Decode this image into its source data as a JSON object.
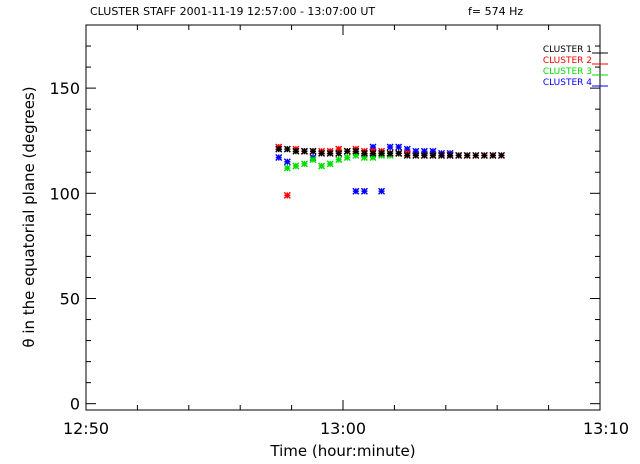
{
  "chart_data": {
    "type": "scatter",
    "title": "CLUSTER STAFF 2001-11-19 12:57:00 - 13:07:00 UT",
    "subtitle": "f=   574 Hz",
    "xlabel": "Time (hour:minute)",
    "ylabel": "θ in the equatorial plane (degrees)",
    "xlim": [
      "12:50",
      "13:10"
    ],
    "ylim": [
      -3,
      180
    ],
    "x_ticks": [
      "12:50",
      "13:00",
      "13:10"
    ],
    "y_ticks": [
      0,
      50,
      100,
      150
    ],
    "marker": "asterisk",
    "legend_position": "top-right",
    "series": [
      {
        "name": "CLUSTER 1",
        "color": "#000000",
        "x": [
          "12:57:30",
          "12:57:50",
          "12:58:10",
          "12:58:30",
          "12:58:50",
          "12:59:10",
          "12:59:30",
          "12:59:50",
          "13:00:10",
          "13:00:30",
          "13:00:50",
          "13:01:10",
          "13:01:30",
          "13:01:50",
          "13:02:10",
          "13:02:30",
          "13:02:50",
          "13:03:10",
          "13:03:30",
          "13:03:50",
          "13:04:10",
          "13:04:30",
          "13:04:50",
          "13:05:10",
          "13:05:30",
          "13:05:50",
          "13:06:10"
        ],
        "y": [
          121,
          121,
          120,
          120,
          120,
          119,
          119,
          119,
          120,
          120,
          119,
          119,
          119,
          119,
          119,
          118,
          118,
          118,
          118,
          118,
          118,
          118,
          118,
          118,
          118,
          118,
          118
        ]
      },
      {
        "name": "CLUSTER 2",
        "color": "#ff0000",
        "x": [
          "12:57:30",
          "12:57:50",
          "12:58:10",
          "12:58:30",
          "12:58:50",
          "12:59:10",
          "12:59:30",
          "12:59:50",
          "13:00:10",
          "13:00:30",
          "13:00:50",
          "13:01:10",
          "13:01:30",
          "13:01:50",
          "13:02:10",
          "13:02:30",
          "13:02:50",
          "13:03:10",
          "13:03:30",
          "13:03:50",
          "13:04:10",
          "13:04:30",
          "13:04:50",
          "13:05:10",
          "13:05:30",
          "13:05:50",
          "13:06:10"
        ],
        "y": [
          122,
          99,
          121,
          120,
          120,
          120,
          120,
          121,
          120,
          121,
          120,
          120,
          120,
          119,
          119,
          119,
          118,
          118,
          118,
          118,
          118,
          118,
          118,
          118,
          118,
          118,
          118
        ]
      },
      {
        "name": "CLUSTER 3",
        "color": "#00dd00",
        "x": [
          "12:57:50",
          "12:58:10",
          "12:58:30",
          "12:58:50",
          "12:59:10",
          "12:59:30",
          "12:59:50",
          "13:00:10",
          "13:00:30",
          "13:00:50",
          "13:01:10",
          "13:01:30",
          "13:01:50",
          "13:02:10"
        ],
        "y": [
          112,
          113,
          114,
          116,
          113,
          114,
          116,
          117,
          118,
          117,
          117,
          118,
          118,
          119
        ]
      },
      {
        "name": "CLUSTER 4",
        "color": "#0000ff",
        "x": [
          "12:57:30",
          "12:57:50",
          "12:58:50",
          "13:00:30",
          "13:00:50",
          "13:01:10",
          "13:01:30",
          "13:01:50",
          "13:02:10",
          "13:02:30",
          "13:02:50",
          "13:03:10",
          "13:03:30",
          "13:03:50",
          "13:04:10"
        ],
        "y": [
          117,
          115,
          117,
          101,
          101,
          122,
          101,
          122,
          122,
          121,
          120,
          120,
          120,
          119,
          119
        ]
      }
    ]
  }
}
